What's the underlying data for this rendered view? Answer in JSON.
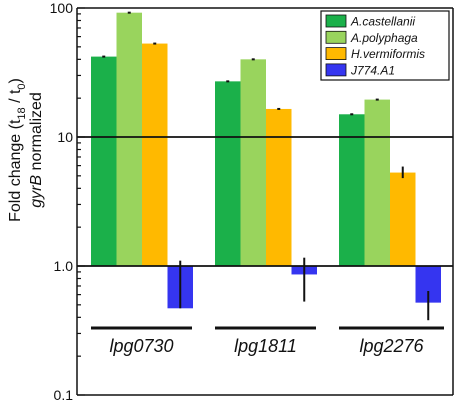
{
  "chart_data": {
    "type": "bar",
    "categories": [
      "lpg0730",
      "lpg1811",
      "lpg2276"
    ],
    "yscale": "log",
    "ylim": [
      0.1,
      100
    ],
    "yticks": [
      "0.1",
      "1.0",
      "10",
      "100"
    ],
    "ylabel": {
      "line1_pre": "Fold change (t",
      "line1_sub1": "18",
      "line1_mid": " / t",
      "line1_sub2": "0",
      "line1_post": ")",
      "line2_italic": "gyrB",
      "line2_post": " normalized"
    },
    "reference_lines": [
      1,
      10
    ],
    "legend_position": "top-right",
    "series": [
      {
        "name": "A.castellanii",
        "color": "#1bb04a",
        "values": [
          42,
          27,
          15
        ],
        "err_low": [
          0,
          0,
          0
        ],
        "err_high": [
          0,
          0,
          0
        ]
      },
      {
        "name": "A.polyphaga",
        "color": "#99d45d",
        "values": [
          92,
          40,
          19.5
        ],
        "err_low": [
          0,
          0,
          0
        ],
        "err_high": [
          0,
          0,
          0
        ]
      },
      {
        "name": "H.vermiformis",
        "color": "#ffb900",
        "values": [
          53,
          16.5,
          5.3
        ],
        "err_low": [
          0,
          0,
          0.5
        ],
        "err_high": [
          0,
          0,
          0.6
        ]
      },
      {
        "name": "J774.A1",
        "color": "#3535f0",
        "values": [
          0.47,
          0.86,
          0.52
        ],
        "err_low": [
          0,
          0.33,
          0.14
        ],
        "err_high": [
          0.63,
          0.3,
          0.12
        ]
      }
    ]
  }
}
